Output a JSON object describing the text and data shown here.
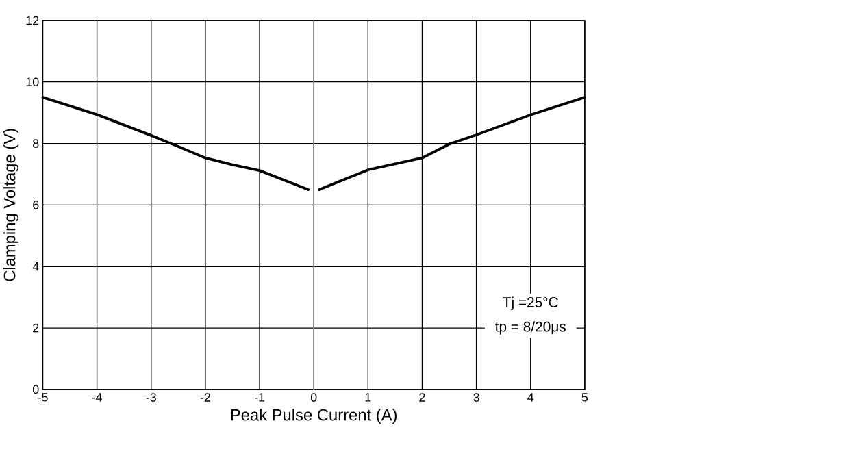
{
  "chart_data": {
    "type": "line",
    "xlabel": "Peak Pulse Current (A)",
    "ylabel": "Clamping Voltage (V)",
    "x": [
      -5,
      -4,
      -3,
      -2.5,
      -2,
      -1.5,
      -1,
      -0.1,
      0,
      0.1,
      1,
      2,
      2.5,
      3,
      4,
      5
    ],
    "series": [
      {
        "color": "#000000",
        "values": [
          9.5,
          8.94,
          8.26,
          7.9,
          7.53,
          7.31,
          7.12,
          6.5,
          null,
          6.5,
          7.14,
          7.53,
          7.98,
          8.28,
          8.93,
          9.5
        ]
      }
    ],
    "xlim": [
      -5,
      5
    ],
    "ylim": [
      0,
      12
    ],
    "xticks": [
      -5,
      -4,
      -3,
      -2,
      -1,
      0,
      1,
      2,
      3,
      4,
      5
    ],
    "yticks": [
      0,
      2,
      4,
      6,
      8,
      10,
      12
    ],
    "grid": true,
    "line_style": "solid",
    "ref_lines": [
      {
        "axis": "x",
        "value": 0,
        "color": "#a0a0a0"
      }
    ],
    "annotations": [
      "Tj =25°C",
      "tp = 8/20μs"
    ]
  }
}
